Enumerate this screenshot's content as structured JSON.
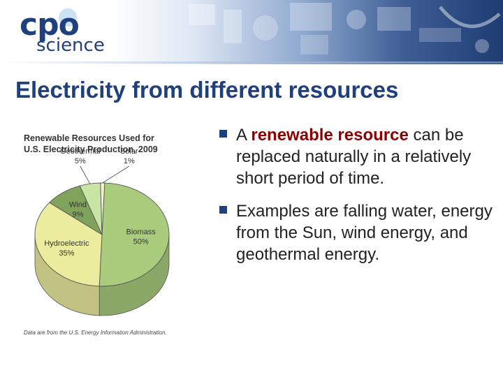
{
  "logo": {
    "line1": "cpo",
    "line2": "science"
  },
  "slide": {
    "title": "Electricity from different resources"
  },
  "bullets": [
    {
      "lead": "A ",
      "emphasis": "renewable resource",
      "tail": " can be replaced naturally in a relatively short period of time."
    },
    {
      "lead": "Examples are  falling water, energy from the Sun, wind energy, and geothermal energy.",
      "emphasis": "",
      "tail": ""
    }
  ],
  "colors": {
    "title": "#1f3f7d",
    "emphasis": "#8b0000",
    "biomass": "#a9cd7c",
    "hydro": "#ecec9e",
    "wind": "#7fa35a",
    "geothermal": "#c8e5a6",
    "solar": "#f2f2cc"
  },
  "chart_data": {
    "type": "pie",
    "title": "Renewable Resources Used for U.S. Electricity Production, 2009",
    "categories": [
      "Biomass",
      "Hydroelectric",
      "Wind",
      "Geothermal",
      "Solar"
    ],
    "values": [
      50,
      35,
      9,
      5,
      1
    ],
    "value_labels": [
      "50%",
      "35%",
      "9%",
      "5%",
      "1%"
    ],
    "source_note": "Data are from the U.S. Energy Information Administration."
  }
}
